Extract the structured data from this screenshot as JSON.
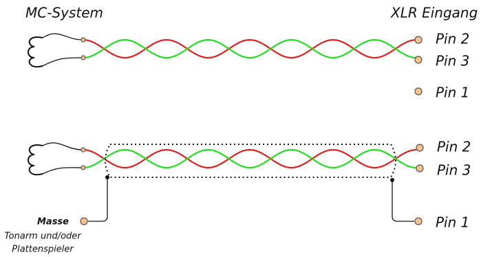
{
  "top": {
    "left_label": "MC-System",
    "right_label": "XLR Eingang",
    "pins": [
      "Pin 2",
      "Pin 3",
      "Pin 1"
    ]
  },
  "bottom": {
    "pins": [
      "Pin 2",
      "Pin 3",
      "Pin 1"
    ],
    "ground": {
      "label": "Masse",
      "note": [
        "Tonarm und/oder",
        "Plattenspieler"
      ]
    }
  }
}
